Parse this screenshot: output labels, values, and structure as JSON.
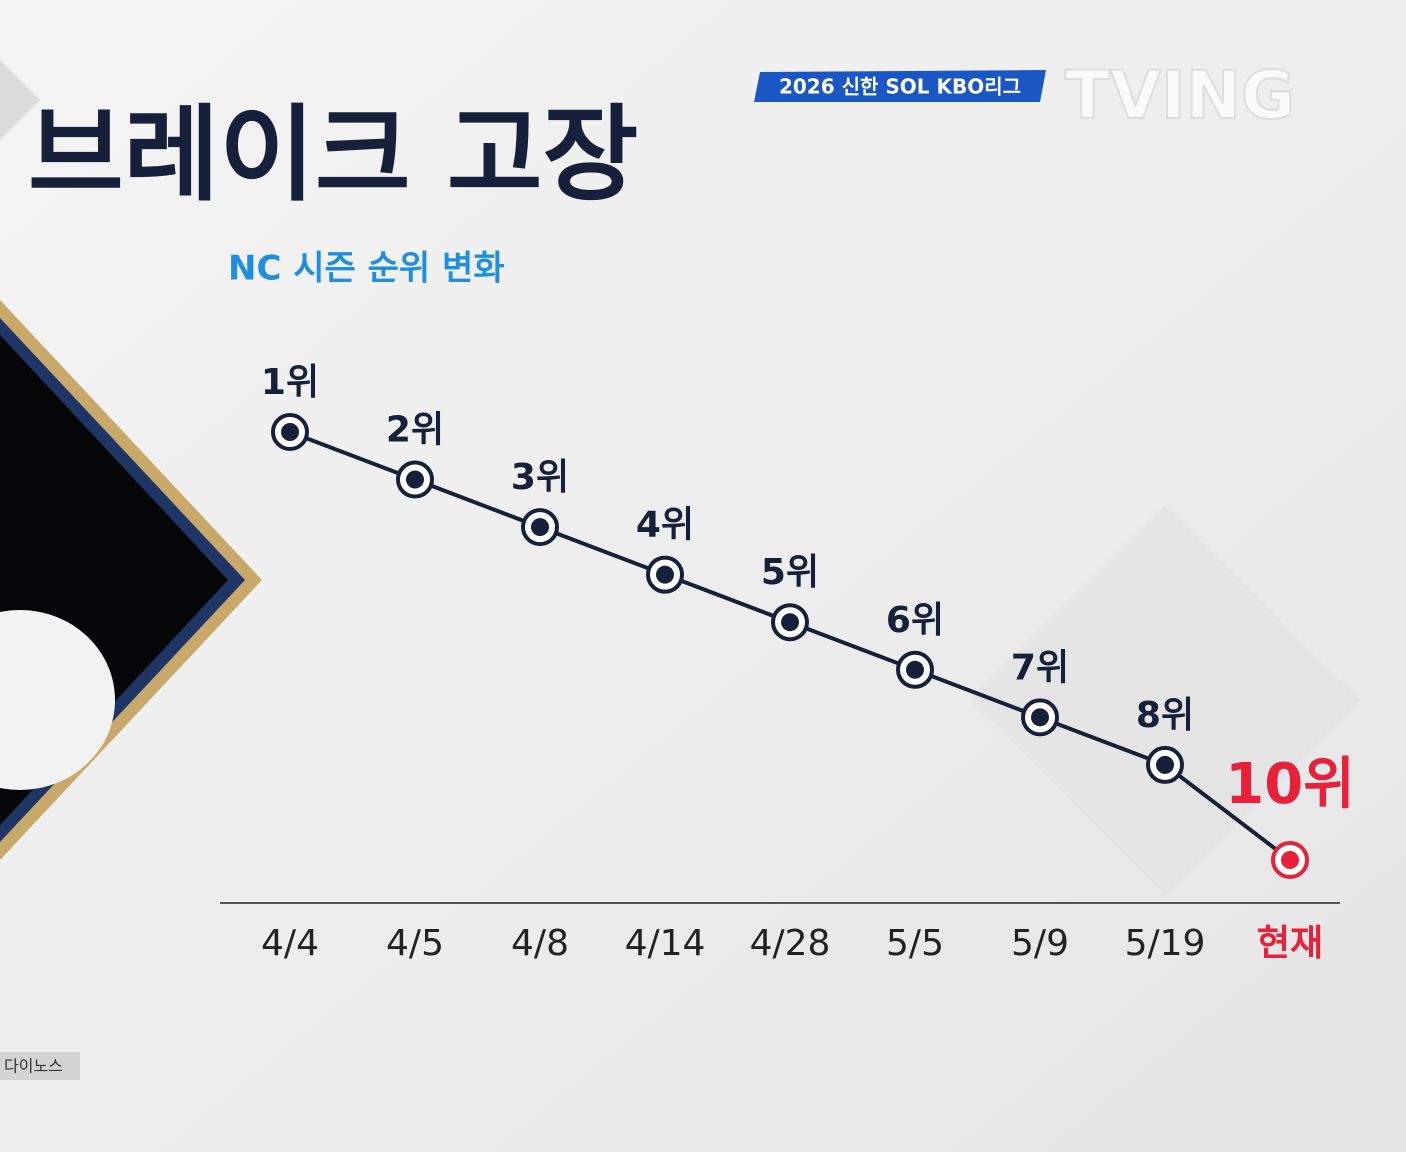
{
  "chart_data": {
    "type": "line",
    "title": "브레이크 고장",
    "subtitle": "NC 시즌 순위 변화",
    "league_logo": "2026 신한 SOL KBO리그",
    "broadcaster": "TVING",
    "photo_caption": "다이노스",
    "categories": [
      "4/4",
      "4/5",
      "4/8",
      "4/14",
      "4/28",
      "5/5",
      "5/9",
      "5/19",
      "현재"
    ],
    "series": [
      {
        "name": "NC",
        "color": "#17203a",
        "values": [
          1,
          2,
          3,
          4,
          5,
          6,
          7,
          8,
          10
        ],
        "value_labels": [
          "1위",
          "2위",
          "3위",
          "4위",
          "5위",
          "6위",
          "7위",
          "8위",
          "10위"
        ],
        "point_colors": [
          "#17203a",
          "#17203a",
          "#17203a",
          "#17203a",
          "#17203a",
          "#17203a",
          "#17203a",
          "#17203a",
          "#e8203a"
        ]
      }
    ],
    "ylim": [
      1,
      10
    ],
    "y_inverted": true
  }
}
